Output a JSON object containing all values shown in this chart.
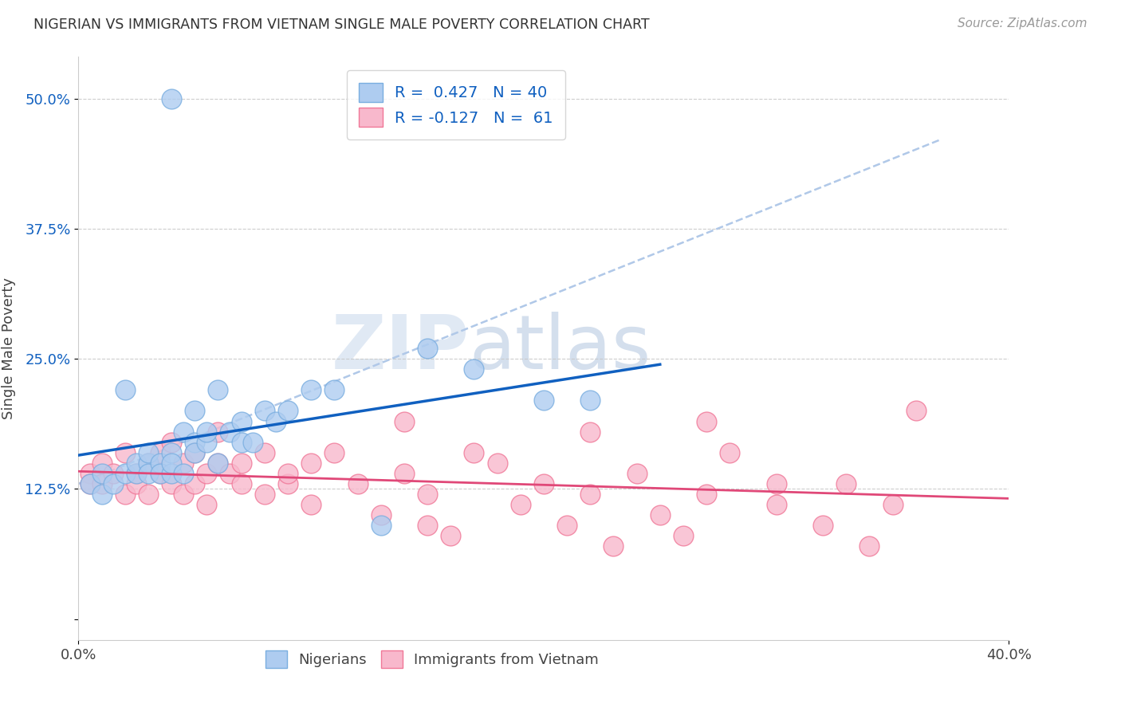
{
  "title": "NIGERIAN VS IMMIGRANTS FROM VIETNAM SINGLE MALE POVERTY CORRELATION CHART",
  "source": "Source: ZipAtlas.com",
  "ylabel": "Single Male Poverty",
  "xlim": [
    0.0,
    0.4
  ],
  "ylim": [
    -0.02,
    0.54
  ],
  "blue_R": 0.427,
  "blue_N": 40,
  "pink_R": -0.127,
  "pink_N": 61,
  "blue_color": "#aeccf0",
  "blue_edge": "#7aaee0",
  "pink_color": "#f8b8cc",
  "pink_edge": "#f07898",
  "blue_line_color": "#1060c0",
  "pink_line_color": "#e04878",
  "gray_dash_color": "#b0c8e8",
  "horiz_dash_color": "#c8c8c8",
  "watermark_zip": "ZIP",
  "watermark_atlas": "atlas",
  "blue_scatter_x": [
    0.005,
    0.01,
    0.01,
    0.015,
    0.02,
    0.02,
    0.025,
    0.025,
    0.03,
    0.03,
    0.03,
    0.035,
    0.035,
    0.04,
    0.04,
    0.04,
    0.045,
    0.045,
    0.05,
    0.05,
    0.05,
    0.055,
    0.055,
    0.06,
    0.06,
    0.065,
    0.07,
    0.07,
    0.075,
    0.08,
    0.085,
    0.09,
    0.1,
    0.11,
    0.13,
    0.15,
    0.17,
    0.2,
    0.22,
    0.04
  ],
  "blue_scatter_y": [
    0.13,
    0.14,
    0.12,
    0.13,
    0.22,
    0.14,
    0.14,
    0.15,
    0.15,
    0.16,
    0.14,
    0.15,
    0.14,
    0.16,
    0.14,
    0.15,
    0.18,
    0.14,
    0.17,
    0.16,
    0.2,
    0.17,
    0.18,
    0.15,
    0.22,
    0.18,
    0.19,
    0.17,
    0.17,
    0.2,
    0.19,
    0.2,
    0.22,
    0.22,
    0.09,
    0.26,
    0.24,
    0.21,
    0.21,
    0.5
  ],
  "pink_scatter_x": [
    0.005,
    0.005,
    0.01,
    0.01,
    0.015,
    0.02,
    0.02,
    0.025,
    0.025,
    0.03,
    0.03,
    0.035,
    0.035,
    0.04,
    0.04,
    0.045,
    0.045,
    0.05,
    0.05,
    0.055,
    0.055,
    0.06,
    0.06,
    0.065,
    0.07,
    0.07,
    0.08,
    0.08,
    0.09,
    0.09,
    0.1,
    0.1,
    0.11,
    0.12,
    0.13,
    0.14,
    0.14,
    0.15,
    0.16,
    0.17,
    0.18,
    0.19,
    0.2,
    0.21,
    0.22,
    0.23,
    0.24,
    0.25,
    0.26,
    0.27,
    0.28,
    0.3,
    0.3,
    0.32,
    0.33,
    0.34,
    0.35,
    0.36,
    0.22,
    0.27,
    0.15
  ],
  "pink_scatter_y": [
    0.14,
    0.13,
    0.13,
    0.15,
    0.14,
    0.12,
    0.16,
    0.14,
    0.13,
    0.15,
    0.12,
    0.14,
    0.16,
    0.13,
    0.17,
    0.15,
    0.12,
    0.16,
    0.13,
    0.14,
    0.11,
    0.15,
    0.18,
    0.14,
    0.13,
    0.15,
    0.12,
    0.16,
    0.13,
    0.14,
    0.15,
    0.11,
    0.16,
    0.13,
    0.1,
    0.14,
    0.19,
    0.12,
    0.08,
    0.16,
    0.15,
    0.11,
    0.13,
    0.09,
    0.12,
    0.07,
    0.14,
    0.1,
    0.08,
    0.12,
    0.16,
    0.11,
    0.13,
    0.09,
    0.13,
    0.07,
    0.11,
    0.2,
    0.18,
    0.19,
    0.09
  ],
  "gray_line_x": [
    0.0,
    0.37
  ],
  "gray_line_y": [
    0.13,
    0.46
  ]
}
